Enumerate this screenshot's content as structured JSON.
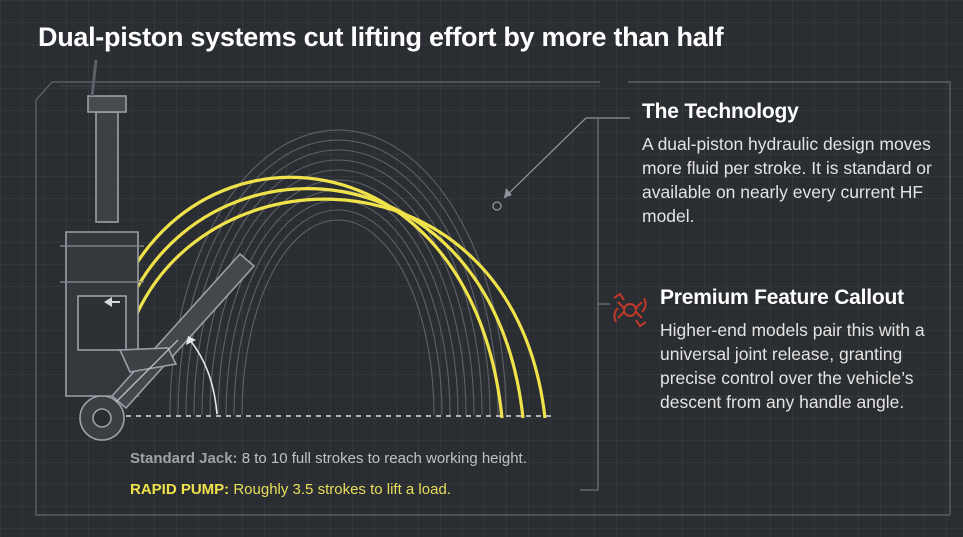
{
  "title": "Dual-piston systems cut lifting effort by more than half",
  "technology": {
    "heading": "The Technology",
    "body": "A dual-piston hydraulic design moves more fluid per stroke. It is standard or available on nearly every current HF model."
  },
  "premium": {
    "heading": "Premium Feature Callout",
    "body": "Higher-end models pair this with a universal joint release, granting precise control over the vehicle’s descent from any handle angle.",
    "icon": "universal-joint-icon"
  },
  "standard_jack": {
    "label": "Standard Jack:",
    "text": "8 to 10 full strokes to reach working height."
  },
  "rapid_pump": {
    "label": "RAPID PUMP:",
    "text": "Roughly 3.5 strokes to lift a load."
  },
  "colors": {
    "background": "#2a2d31",
    "rapid_arc": "#f0e24a",
    "standard_arc": "#6c7075",
    "callout_icon": "#c0392b"
  }
}
